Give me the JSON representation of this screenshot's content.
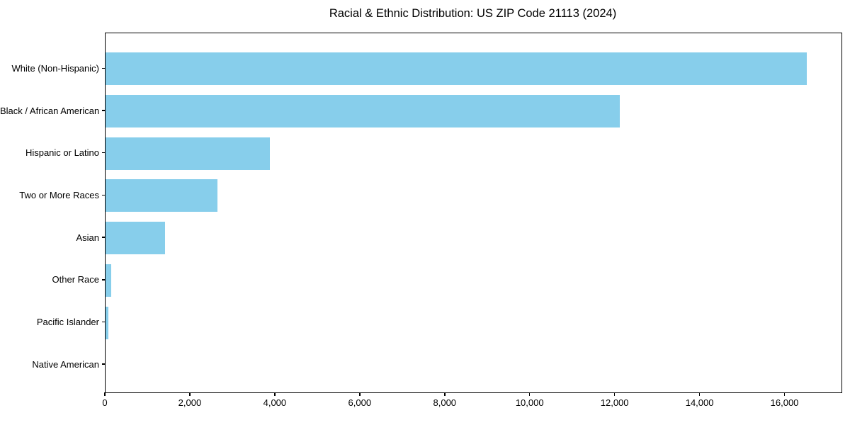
{
  "chart_data": {
    "type": "bar",
    "orientation": "horizontal",
    "title": "Racial & Ethnic Distribution: US ZIP Code 21113 (2024)",
    "categories": [
      "White (Non-Hispanic)",
      "Black / African American",
      "Hispanic or Latino",
      "Two or More Races",
      "Asian",
      "Other Race",
      "Pacific Islander",
      "Native American"
    ],
    "values": [
      16500,
      12100,
      3870,
      2630,
      1400,
      130,
      65,
      0
    ],
    "bar_color": "#87CEEB",
    "xlabel": "",
    "ylabel": "",
    "xlim": [
      0,
      17325
    ],
    "xticks": [
      0,
      2000,
      4000,
      6000,
      8000,
      10000,
      12000,
      14000,
      16000
    ],
    "xtick_labels": [
      "0",
      "2,000",
      "4,000",
      "6,000",
      "8,000",
      "10,000",
      "12,000",
      "14,000",
      "16,000"
    ],
    "grid": false,
    "legend": null,
    "spine_color": "#000000",
    "background_color": "#ffffff"
  }
}
